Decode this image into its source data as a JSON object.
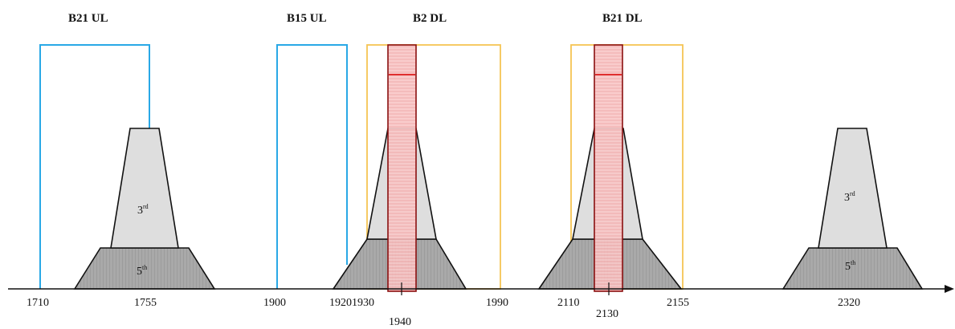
{
  "band_labels": {
    "b21_ul": "B21 UL",
    "b15_ul": "B15 UL",
    "b2_dl": "B2 DL",
    "b21_dl": "B21 DL"
  },
  "tick_labels": {
    "t1710": "1710",
    "t1755": "1755",
    "t1900": "1900",
    "t1920_1930": "19201930",
    "t1940": "1940",
    "t1990": "1990",
    "t2110": "2110",
    "t2130": "2130",
    "t2155": "2155",
    "t2320": "2320"
  },
  "harmonics": {
    "left": {
      "third_base": "3",
      "third_sup": "rd",
      "fifth_base": "5",
      "fifth_sup": "th"
    },
    "right": {
      "third_base": "3",
      "third_sup": "rd",
      "fifth_base": "5",
      "fifth_sup": "th"
    }
  },
  "colors": {
    "ul_band": "#29a8e6",
    "dl_band": "#f6c454",
    "carrier_fill": "#f7c6c6",
    "carrier_stroke": "#a01010",
    "carrier_line": "#e03030",
    "third_fill": "#dedede",
    "fifth_fill": "#a9a9a9",
    "axis": "#111111"
  }
}
